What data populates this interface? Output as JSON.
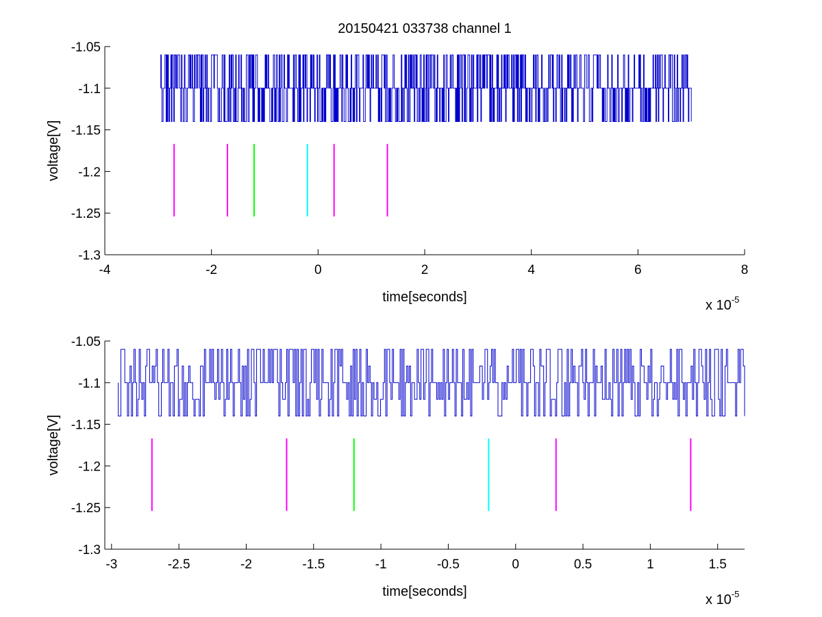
{
  "title": "20150421 033738 channel 1",
  "colors": {
    "signal": "#0000cc",
    "marker_magenta": "#ff00ff",
    "marker_green": "#00ff00",
    "marker_cyan": "#00ffff",
    "axes": "#000000"
  },
  "chart_data": [
    {
      "type": "line",
      "xlabel": "time[seconds]",
      "ylabel": "voltage[V]",
      "exponent": {
        "base": "x 10",
        "power": "-5"
      },
      "xlim": [
        -4,
        8
      ],
      "ylim": [
        -1.3,
        -1.05
      ],
      "xticks": [
        -4,
        -2,
        0,
        2,
        4,
        6,
        8
      ],
      "xtick_labels": [
        "-4",
        "-2",
        "0",
        "2",
        "4",
        "6",
        "8"
      ],
      "yticks": [
        -1.3,
        -1.25,
        -1.2,
        -1.15,
        -1.1,
        -1.05
      ],
      "ytick_labels": [
        "-1.3",
        "-1.25",
        "-1.2",
        "-1.15",
        "-1.1",
        "-1.05"
      ],
      "signal": {
        "x_range": [
          -2.95,
          7.0
        ],
        "levels": [
          -1.06,
          -1.1,
          -1.14
        ],
        "baseline": -1.1,
        "color": "signal"
      },
      "markers": [
        {
          "x": -2.7,
          "y": [
            -1.167,
            -1.254
          ],
          "color": "marker_magenta"
        },
        {
          "x": -1.7,
          "y": [
            -1.167,
            -1.254
          ],
          "color": "marker_magenta"
        },
        {
          "x": -1.2,
          "y": [
            -1.167,
            -1.254
          ],
          "color": "marker_green"
        },
        {
          "x": -0.2,
          "y": [
            -1.167,
            -1.254
          ],
          "color": "marker_cyan"
        },
        {
          "x": 0.3,
          "y": [
            -1.167,
            -1.254
          ],
          "color": "marker_magenta"
        },
        {
          "x": 1.3,
          "y": [
            -1.167,
            -1.254
          ],
          "color": "marker_magenta"
        }
      ],
      "grid": false,
      "legend": "none"
    },
    {
      "type": "line",
      "xlabel": "time[seconds]",
      "ylabel": "voltage[V]",
      "exponent": {
        "base": "x 10",
        "power": "-5"
      },
      "xlim": [
        -3.05,
        1.7
      ],
      "ylim": [
        -1.3,
        -1.05
      ],
      "xticks": [
        -3,
        -2.5,
        -2,
        -1.5,
        -1,
        -0.5,
        0,
        0.5,
        1,
        1.5
      ],
      "xtick_labels": [
        "-3",
        "-2.5",
        "-2",
        "-1.5",
        "-1",
        "-0.5",
        "0",
        "0.5",
        "1",
        "1.5"
      ],
      "yticks": [
        -1.3,
        -1.25,
        -1.2,
        -1.15,
        -1.1,
        -1.05
      ],
      "ytick_labels": [
        "-1.3",
        "-1.25",
        "-1.2",
        "-1.15",
        "-1.1",
        "-1.05"
      ],
      "signal": {
        "x_range": [
          -2.95,
          1.7
        ],
        "levels": [
          -1.06,
          -1.08,
          -1.1,
          -1.12,
          -1.14
        ],
        "baseline": -1.1,
        "color": "signal"
      },
      "markers": [
        {
          "x": -2.7,
          "y": [
            -1.167,
            -1.254
          ],
          "color": "marker_magenta"
        },
        {
          "x": -1.7,
          "y": [
            -1.167,
            -1.254
          ],
          "color": "marker_magenta"
        },
        {
          "x": -1.2,
          "y": [
            -1.167,
            -1.254
          ],
          "color": "marker_green"
        },
        {
          "x": -0.2,
          "y": [
            -1.167,
            -1.254
          ],
          "color": "marker_cyan"
        },
        {
          "x": 0.3,
          "y": [
            -1.167,
            -1.254
          ],
          "color": "marker_magenta"
        },
        {
          "x": 1.3,
          "y": [
            -1.167,
            -1.254
          ],
          "color": "marker_magenta"
        }
      ],
      "grid": false,
      "legend": "none"
    }
  ]
}
